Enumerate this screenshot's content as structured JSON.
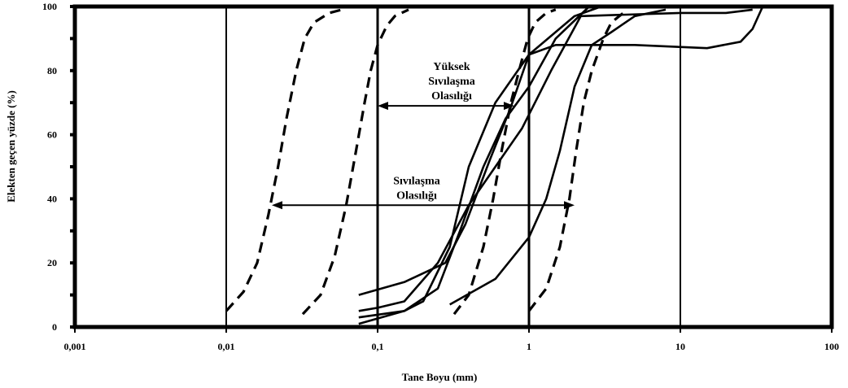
{
  "chart_data": {
    "type": "line",
    "title": "",
    "xlabel": "Tane Boyu (mm)",
    "ylabel": "Elekten geçen yüzde (%)",
    "x_scale": "log",
    "xlim": [
      0.001,
      100
    ],
    "ylim": [
      0,
      100
    ],
    "x_tick_labels": [
      "0,001",
      "0,01",
      "0,1",
      "1",
      "10",
      "100"
    ],
    "y_tick_labels": [
      "0",
      "20",
      "40",
      "60",
      "80",
      "100"
    ],
    "grid": "vertical lines at decades",
    "annotations": [
      {
        "lines": [
          "Yüksek",
          "Sıvılaşma",
          "Olasılığı"
        ],
        "range_mm": [
          0.1,
          0.8
        ],
        "arrow_y": 69
      },
      {
        "lines": [
          "Sıvılaşma",
          "Olasılığı"
        ],
        "range_mm": [
          0.02,
          2.0
        ],
        "arrow_y": 38
      }
    ],
    "boundary_curves": [
      {
        "style": "dashed",
        "points": [
          [
            0.01,
            5
          ],
          [
            0.013,
            11
          ],
          [
            0.016,
            20
          ],
          [
            0.019,
            35
          ],
          [
            0.022,
            50
          ],
          [
            0.025,
            65
          ],
          [
            0.029,
            80
          ],
          [
            0.033,
            90
          ],
          [
            0.038,
            95
          ],
          [
            0.048,
            98
          ],
          [
            0.058,
            99
          ]
        ]
      },
      {
        "style": "dashed",
        "points": [
          [
            0.032,
            4
          ],
          [
            0.042,
            10
          ],
          [
            0.052,
            22
          ],
          [
            0.062,
            38
          ],
          [
            0.072,
            55
          ],
          [
            0.082,
            70
          ],
          [
            0.09,
            80
          ],
          [
            0.1,
            88
          ],
          [
            0.115,
            94
          ],
          [
            0.13,
            97
          ],
          [
            0.16,
            99
          ]
        ]
      },
      {
        "style": "dashed",
        "points": [
          [
            0.32,
            4
          ],
          [
            0.4,
            10
          ],
          [
            0.5,
            25
          ],
          [
            0.58,
            40
          ],
          [
            0.66,
            55
          ],
          [
            0.76,
            70
          ],
          [
            0.86,
            80
          ],
          [
            0.98,
            90
          ],
          [
            1.1,
            95
          ],
          [
            1.3,
            98
          ],
          [
            1.5,
            99
          ]
        ]
      },
      {
        "style": "dashed",
        "points": [
          [
            1.0,
            5
          ],
          [
            1.3,
            12
          ],
          [
            1.6,
            25
          ],
          [
            1.85,
            40
          ],
          [
            2.05,
            55
          ],
          [
            2.3,
            70
          ],
          [
            2.6,
            80
          ],
          [
            3.1,
            90
          ],
          [
            3.5,
            95
          ],
          [
            4.2,
            98
          ]
        ]
      }
    ],
    "series": [
      {
        "style": "solid",
        "points": [
          [
            0.075,
            1
          ],
          [
            0.15,
            5
          ],
          [
            0.2,
            8
          ],
          [
            0.3,
            25
          ],
          [
            0.4,
            50
          ],
          [
            0.6,
            70
          ],
          [
            1.0,
            85
          ],
          [
            2.0,
            97
          ],
          [
            3.0,
            100
          ]
        ]
      },
      {
        "style": "solid",
        "points": [
          [
            0.075,
            3
          ],
          [
            0.15,
            5
          ],
          [
            0.25,
            12
          ],
          [
            0.35,
            30
          ],
          [
            0.5,
            50
          ],
          [
            0.7,
            65
          ],
          [
            1.0,
            75
          ],
          [
            1.5,
            90
          ],
          [
            2.5,
            100
          ],
          [
            4.0,
            100
          ]
        ]
      },
      {
        "style": "solid",
        "points": [
          [
            0.075,
            5
          ],
          [
            0.1,
            6
          ],
          [
            0.15,
            8
          ],
          [
            0.25,
            20
          ],
          [
            0.4,
            38
          ],
          [
            0.6,
            50
          ],
          [
            0.9,
            62
          ],
          [
            1.4,
            80
          ],
          [
            2.2,
            97
          ],
          [
            10.0,
            98
          ],
          [
            20.0,
            98
          ],
          [
            30.0,
            99
          ]
        ]
      },
      {
        "style": "solid",
        "points": [
          [
            0.075,
            10
          ],
          [
            0.15,
            14
          ],
          [
            0.28,
            20
          ],
          [
            0.38,
            32
          ],
          [
            0.55,
            52
          ],
          [
            0.75,
            68
          ],
          [
            1.0,
            85
          ],
          [
            1.5,
            88
          ],
          [
            5.0,
            88
          ],
          [
            15.0,
            87
          ],
          [
            25.0,
            89
          ],
          [
            30.0,
            93
          ],
          [
            35.0,
            100
          ]
        ]
      },
      {
        "style": "solid",
        "points": [
          [
            0.3,
            7
          ],
          [
            0.6,
            15
          ],
          [
            1.0,
            28
          ],
          [
            1.3,
            40
          ],
          [
            1.6,
            55
          ],
          [
            2.0,
            75
          ],
          [
            2.6,
            88
          ],
          [
            3.5,
            92
          ],
          [
            5.0,
            97
          ],
          [
            8.0,
            99
          ]
        ]
      }
    ]
  }
}
